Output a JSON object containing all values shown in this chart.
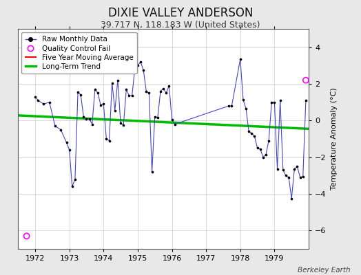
{
  "title": "DIXIE VALLEY ANDERSON",
  "subtitle": "39.717 N, 118.183 W (United States)",
  "ylabel": "Temperature Anomaly (°C)",
  "credit": "Berkeley Earth",
  "background_color": "#e8e8e8",
  "plot_background": "#ffffff",
  "ylim": [
    -7,
    5
  ],
  "yticks": [
    -6,
    -4,
    -2,
    0,
    2,
    4
  ],
  "xlim": [
    1971.5,
    1980.0
  ],
  "xticks": [
    1972,
    1973,
    1974,
    1975,
    1976,
    1977,
    1978,
    1979
  ],
  "raw_data": [
    [
      1972.0,
      1.3
    ],
    [
      1972.083,
      1.1
    ],
    [
      1972.25,
      0.9
    ],
    [
      1972.417,
      1.0
    ],
    [
      1972.583,
      -0.3
    ],
    [
      1972.75,
      -0.5
    ],
    [
      1972.917,
      -1.2
    ],
    [
      1973.0,
      -1.6
    ],
    [
      1973.083,
      -3.6
    ],
    [
      1973.167,
      -3.2
    ],
    [
      1973.25,
      1.55
    ],
    [
      1973.333,
      1.4
    ],
    [
      1973.417,
      0.2
    ],
    [
      1973.5,
      0.1
    ],
    [
      1973.583,
      0.1
    ],
    [
      1973.667,
      -0.2
    ],
    [
      1973.75,
      1.7
    ],
    [
      1973.833,
      1.5
    ],
    [
      1973.917,
      0.85
    ],
    [
      1974.0,
      0.9
    ],
    [
      1974.083,
      -1.0
    ],
    [
      1974.167,
      -1.1
    ],
    [
      1974.25,
      2.05
    ],
    [
      1974.333,
      0.55
    ],
    [
      1974.417,
      2.2
    ],
    [
      1974.5,
      -0.15
    ],
    [
      1974.583,
      -0.25
    ],
    [
      1974.667,
      1.7
    ],
    [
      1974.75,
      1.35
    ],
    [
      1974.833,
      1.35
    ],
    [
      1974.917,
      2.85
    ],
    [
      1975.0,
      3.0
    ],
    [
      1975.083,
      3.2
    ],
    [
      1975.167,
      2.75
    ],
    [
      1975.25,
      1.6
    ],
    [
      1975.333,
      1.5
    ],
    [
      1975.417,
      -2.8
    ],
    [
      1975.5,
      0.2
    ],
    [
      1975.583,
      0.15
    ],
    [
      1975.667,
      1.6
    ],
    [
      1975.75,
      1.75
    ],
    [
      1975.833,
      1.5
    ],
    [
      1975.917,
      1.9
    ],
    [
      1976.0,
      0.05
    ],
    [
      1976.083,
      -0.2
    ],
    [
      1977.667,
      0.8
    ],
    [
      1977.75,
      0.8
    ],
    [
      1978.0,
      3.35
    ],
    [
      1978.083,
      1.15
    ],
    [
      1978.167,
      0.65
    ],
    [
      1978.25,
      -0.6
    ],
    [
      1978.333,
      -0.7
    ],
    [
      1978.417,
      -0.85
    ],
    [
      1978.5,
      -1.5
    ],
    [
      1978.583,
      -1.55
    ],
    [
      1978.667,
      -2.0
    ],
    [
      1978.75,
      -1.85
    ],
    [
      1978.833,
      -1.1
    ],
    [
      1978.917,
      1.0
    ],
    [
      1979.0,
      1.0
    ],
    [
      1979.083,
      -2.65
    ],
    [
      1979.167,
      1.1
    ],
    [
      1979.25,
      -2.7
    ],
    [
      1979.333,
      -3.0
    ],
    [
      1979.417,
      -3.1
    ],
    [
      1979.5,
      -4.25
    ],
    [
      1979.583,
      -2.65
    ],
    [
      1979.667,
      -2.5
    ],
    [
      1979.75,
      -3.1
    ],
    [
      1979.833,
      -3.05
    ],
    [
      1979.917,
      1.1
    ]
  ],
  "qc_fail_inside": [
    [
      1971.75,
      -6.3
    ]
  ],
  "qc_fail_outside": [
    [
      1979.917,
      2.2
    ]
  ],
  "trend_x": [
    1971.5,
    1980.0
  ],
  "trend_y": [
    0.28,
    -0.45
  ],
  "legend_labels": [
    "Raw Monthly Data",
    "Quality Control Fail",
    "Five Year Moving Average",
    "Long-Term Trend"
  ],
  "line_color": "#4444cc",
  "dot_color": "#000000",
  "qc_color": "#ff00ff",
  "trend_color": "#00bb00",
  "moving_avg_color": "#ff0000",
  "grid_color": "#cccccc",
  "title_fontsize": 12,
  "subtitle_fontsize": 9,
  "axis_fontsize": 8,
  "ylabel_fontsize": 8
}
